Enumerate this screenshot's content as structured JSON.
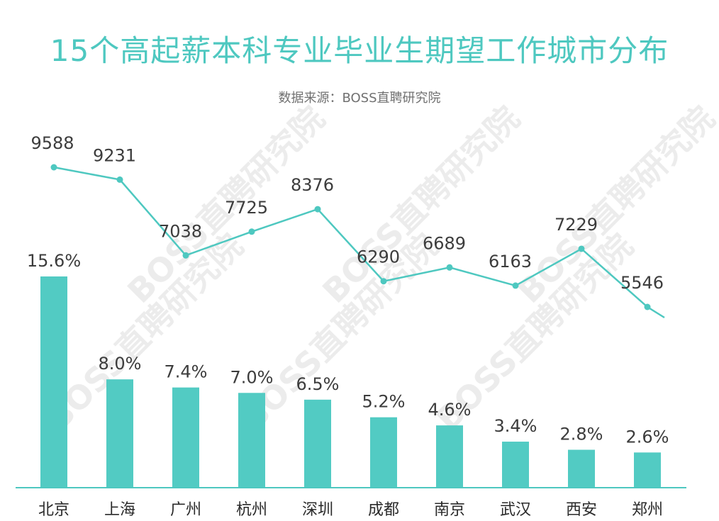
{
  "title": "15个高起薪本科专业毕业生期望工作城市分布",
  "subtitle": "数据来源：BOSS直聘研究院",
  "watermark": "BOSS直聘研究院",
  "colors": {
    "accent": "#4ec8c0",
    "bar": "#52cbc3",
    "line": "#4ec8c0",
    "axis": "#4ec8c0",
    "text": "#3c3c3c"
  },
  "chart_data": {
    "type": "bar",
    "categories": [
      "北京",
      "上海",
      "广州",
      "杭州",
      "深圳",
      "成都",
      "南京",
      "武汉",
      "西安",
      "郑州"
    ],
    "series": [
      {
        "type": "bar",
        "values": [
          15.6,
          8.0,
          7.4,
          7.0,
          6.5,
          5.2,
          4.6,
          3.4,
          2.8,
          2.6
        ],
        "labels": [
          "15.6%",
          "8.0%",
          "7.4%",
          "7.0%",
          "6.5%",
          "5.2%",
          "4.6%",
          "3.4%",
          "2.8%",
          "2.6%"
        ]
      },
      {
        "type": "line",
        "values": [
          9588,
          9231,
          7038,
          7725,
          8376,
          6290,
          6689,
          6163,
          7229,
          5546
        ],
        "labels": [
          "9588",
          "9231",
          "7038",
          "7725",
          "8376",
          "6290",
          "6689",
          "6163",
          "7229",
          "5546"
        ]
      }
    ],
    "grid": false,
    "legend": "none"
  }
}
